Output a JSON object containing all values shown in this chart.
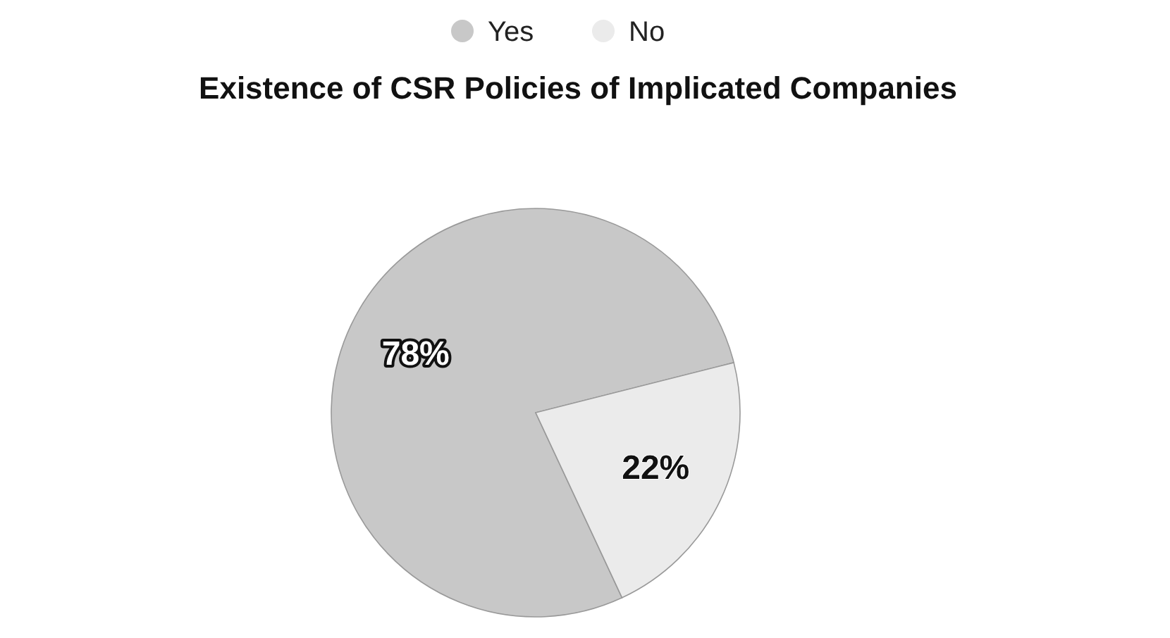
{
  "chart_data": {
    "type": "pie",
    "title": "Existence of CSR Policies of Implicated Companies",
    "categories": [
      "Yes",
      "No"
    ],
    "values": [
      78,
      22
    ],
    "colors": [
      "#c8c8c8",
      "#ebebeb"
    ],
    "value_labels": [
      "78%",
      "22%"
    ],
    "legend": "top"
  }
}
